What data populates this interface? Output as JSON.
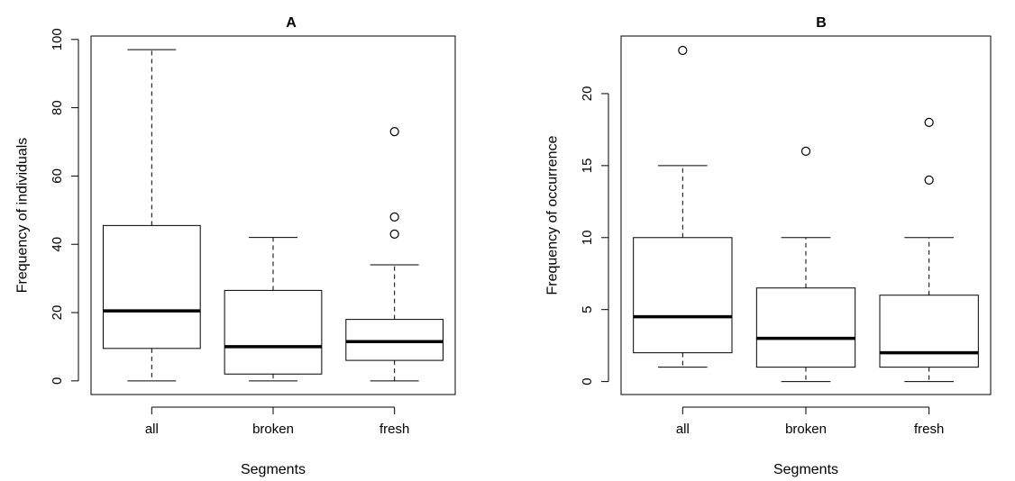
{
  "chart_data": [
    {
      "type": "boxplot",
      "title": "A",
      "xlabel": "Segments",
      "ylabel": "Frequency of individuals",
      "categories": [
        "all",
        "broken",
        "fresh"
      ],
      "yticks": [
        "0",
        "20",
        "40",
        "60",
        "80",
        "100"
      ],
      "ylim": [
        -4,
        101
      ],
      "grid": false,
      "boxes": [
        {
          "category": "all",
          "whisker_low": 0,
          "q1": 9.5,
          "median": 20.5,
          "q3": 45.5,
          "whisker_high": 97,
          "outliers": []
        },
        {
          "category": "broken",
          "whisker_low": 0,
          "q1": 2,
          "median": 10,
          "q3": 26.5,
          "whisker_high": 42,
          "outliers": []
        },
        {
          "category": "fresh",
          "whisker_low": 0,
          "q1": 6,
          "median": 11.5,
          "q3": 18,
          "whisker_high": 34,
          "outliers": [
            43,
            48,
            73
          ]
        }
      ]
    },
    {
      "type": "boxplot",
      "title": "B",
      "xlabel": "Segments",
      "ylabel": "Frequency of occurrence",
      "categories": [
        "all",
        "broken",
        "fresh"
      ],
      "yticks": [
        "0",
        "5",
        "10",
        "15",
        "20"
      ],
      "ylim": [
        -0.9,
        24
      ],
      "grid": false,
      "boxes": [
        {
          "category": "all",
          "whisker_low": 1,
          "q1": 2,
          "median": 4.5,
          "q3": 10,
          "whisker_high": 15,
          "outliers": [
            23
          ]
        },
        {
          "category": "broken",
          "whisker_low": 0,
          "q1": 1,
          "median": 3,
          "q3": 6.5,
          "whisker_high": 10,
          "outliers": [
            16
          ]
        },
        {
          "category": "fresh",
          "whisker_low": 0,
          "q1": 1,
          "median": 2,
          "q3": 6,
          "whisker_high": 10,
          "outliers": [
            14,
            18
          ]
        }
      ]
    }
  ]
}
